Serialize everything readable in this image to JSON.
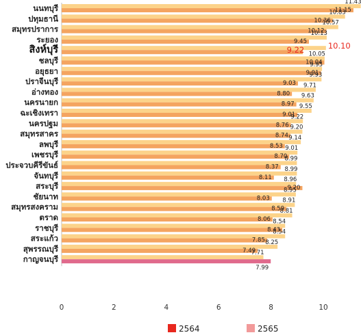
{
  "chart_data": {
    "type": "bar",
    "orientation": "horizontal",
    "categories": [
      "นนทบุรี",
      "ปทุมธานี",
      "สมุทรปราการ",
      "ระยอง",
      "สิงห์บุรี",
      "ชลบุรี",
      "อยุธยา",
      "ปราจีนบุรี",
      "อ่างทอง",
      "นครนายก",
      "ฉะเชิงเทรา",
      "นครปฐม",
      "สมุทรสาคร",
      "ลพบุรี",
      "เพชรบุรี",
      "ประจวบคีรีขันธ์",
      "จันทบุรี",
      "สระบุรี",
      "ชัยนาท",
      "สมุทรสงคราม",
      "ตราด",
      "ราชบุรี",
      "สระแก้ว",
      "สุพรรณบุรี",
      "กาญจนบุรี"
    ],
    "highlight_category": "สิงห์บุรี",
    "series": [
      {
        "name": "2564",
        "color": "#f4a460",
        "values": [
          11.15,
          10.36,
          10.12,
          9.45,
          9.22,
          10.04,
          9.91,
          9.03,
          8.8,
          8.97,
          9.01,
          8.76,
          8.74,
          8.53,
          8.7,
          8.37,
          8.11,
          9.2,
          8.03,
          8.59,
          8.06,
          8.43,
          7.85,
          7.49,
          7.99
        ],
        "labels": [
          "11.15",
          "10.36",
          "10.12",
          "9.45",
          "9.22",
          "10.04",
          "9.91",
          "9.03",
          "8.80",
          "8.97",
          "9.01",
          "8.76",
          "8.74",
          "8.53",
          "8.70",
          "8.37",
          "8.11",
          "9.20",
          "8.03",
          "8.59",
          "8.06",
          "8.43",
          "7.85",
          "7.49",
          "7.99"
        ]
      },
      {
        "name": "2565",
        "color": "#fcd38a",
        "values": [
          11.43,
          10.83,
          10.57,
          10.13,
          10.1,
          10.05,
          9.95,
          9.93,
          9.71,
          9.63,
          9.55,
          9.22,
          9.2,
          9.14,
          9.01,
          8.99,
          8.99,
          8.96,
          8.95,
          8.91,
          8.81,
          8.54,
          8.54,
          8.25,
          7.71
        ],
        "labels": [
          "11.43",
          "10.83",
          "10.57",
          "10.13",
          "10.10",
          "10.05",
          "9.95",
          "9.93",
          "9.71",
          "9.63",
          "9.55",
          "9.22",
          "9.20",
          "9.14",
          "9.01",
          "8.99",
          "8.99",
          "8.96",
          "8.95",
          "8.91",
          "8.81",
          "8.54",
          "8.54",
          "8.25",
          "7.71"
        ]
      }
    ],
    "xlim": [
      0,
      12
    ],
    "x_ticks": [
      "0",
      "2",
      "4",
      "6",
      "8",
      "10"
    ],
    "legend": {
      "position": "bottom",
      "items": [
        {
          "label": "2564",
          "color": "#e8281e"
        },
        {
          "label": "2565",
          "color": "#f29a9a"
        }
      ]
    },
    "last_bar_color": "#e06a8c",
    "highlight_color": "#e8281e"
  }
}
